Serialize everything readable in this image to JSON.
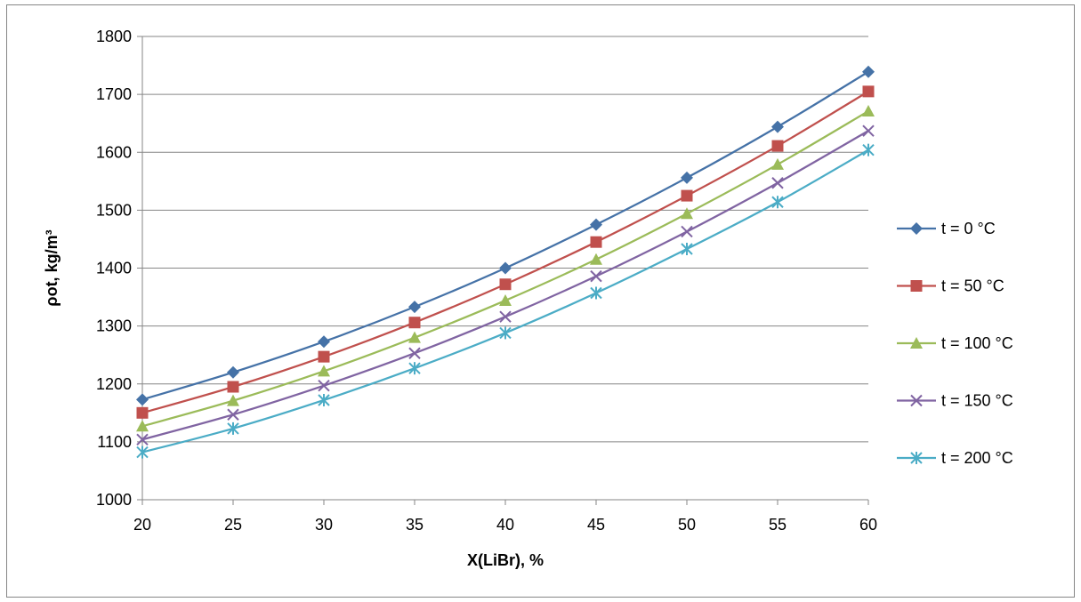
{
  "chart_data": {
    "type": "line",
    "x": [
      20,
      25,
      30,
      35,
      40,
      45,
      50,
      55,
      60
    ],
    "xlabel": "X(LiBr), %",
    "ylabel": "ρot, kg/m³",
    "xlim": [
      20,
      60
    ],
    "ylim": [
      1000,
      1800
    ],
    "xticks": [
      20,
      25,
      30,
      35,
      40,
      45,
      50,
      55,
      60
    ],
    "yticks": [
      1000,
      1100,
      1200,
      1300,
      1400,
      1500,
      1600,
      1700,
      1800
    ],
    "grid": "horizontal",
    "legend_position": "right",
    "series": [
      {
        "name": "t = 0 °C",
        "color": "#4572A7",
        "marker": "diamond",
        "values": [
          1173,
          1220,
          1273,
          1333,
          1400,
          1475,
          1556,
          1644,
          1739
        ]
      },
      {
        "name": "t = 50 °C",
        "color": "#C0504D",
        "marker": "square",
        "values": [
          1150,
          1195,
          1247,
          1306,
          1372,
          1445,
          1525,
          1611,
          1705
        ]
      },
      {
        "name": "t = 100 °C",
        "color": "#9BBB59",
        "marker": "triangle",
        "values": [
          1127,
          1171,
          1222,
          1280,
          1344,
          1415,
          1494,
          1579,
          1671
        ]
      },
      {
        "name": "t = 150 °C",
        "color": "#8064A2",
        "marker": "x",
        "values": [
          1104,
          1147,
          1197,
          1253,
          1316,
          1386,
          1463,
          1547,
          1637
        ]
      },
      {
        "name": "t = 200 °C",
        "color": "#4BACC6",
        "marker": "star",
        "values": [
          1082,
          1123,
          1172,
          1227,
          1288,
          1357,
          1433,
          1514,
          1604
        ]
      }
    ]
  }
}
